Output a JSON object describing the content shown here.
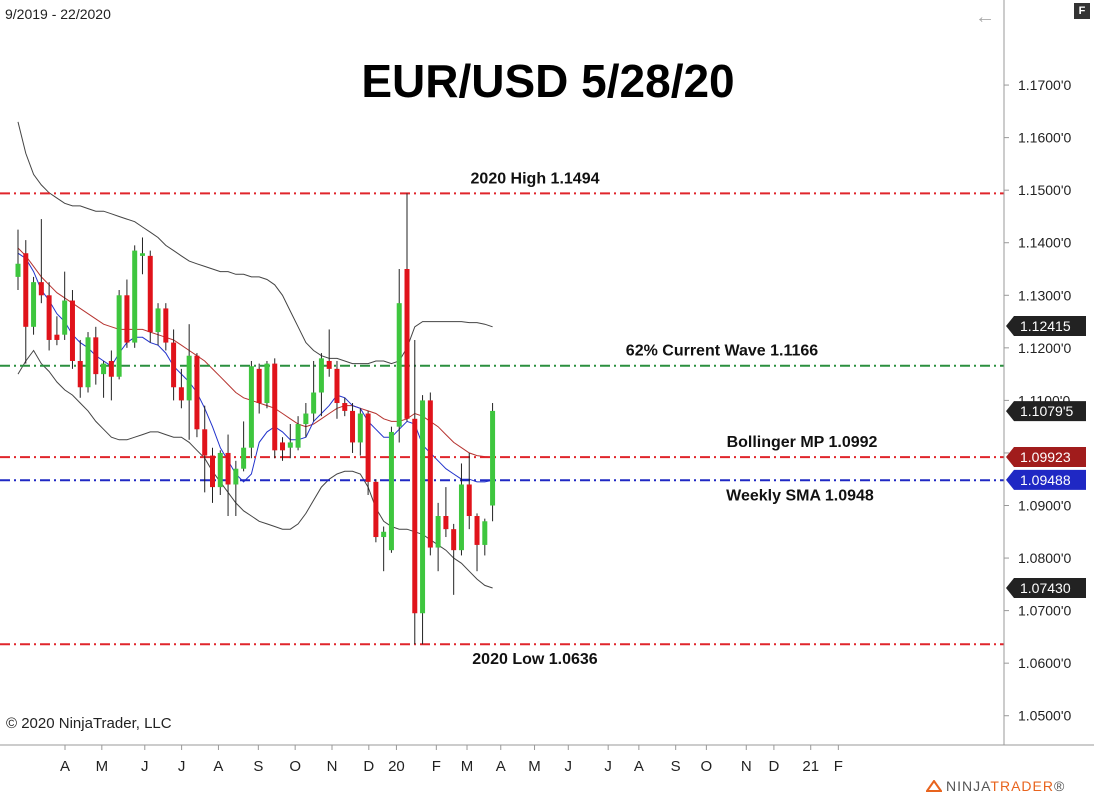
{
  "header": {
    "date_range": "9/2019 - 22/2020",
    "f_label": "F"
  },
  "footer": {
    "copyright": "© 2020 NinjaTrader, LLC",
    "brand_ninja": "NINJA",
    "brand_trader": "TRADER",
    "brand_mark": "®"
  },
  "chart_data": {
    "type": "candlestick",
    "title": "EUR/USD 5/28/20",
    "ylim": [
      1.045,
      1.182
    ],
    "y_ticks": [
      1.05,
      1.06,
      1.07,
      1.08,
      1.09,
      1.1,
      1.11,
      1.12,
      1.13,
      1.14,
      1.15,
      1.16,
      1.17
    ],
    "y_tick_labels": [
      "1.0500'0",
      "1.0600'0",
      "1.0700'0",
      "1.0800'0",
      "1.0900'0",
      "1.1000'0",
      "1.1100'0",
      "1.1200'0",
      "1.1300'0",
      "1.1400'0",
      "1.1500'0",
      "1.1600'0",
      "1.1700'0"
    ],
    "x_labels": [
      "A",
      "M",
      "J",
      "J",
      "A",
      "S",
      "O",
      "N",
      "D",
      "20",
      "F",
      "M",
      "A",
      "M",
      "J",
      "J",
      "A",
      "S",
      "O",
      "N",
      "D",
      "21",
      "F"
    ],
    "x_label_index": [
      1,
      13,
      27,
      39,
      51,
      64,
      76,
      88,
      100,
      109,
      122,
      132,
      143,
      154,
      165,
      178,
      188,
      200,
      210,
      223,
      232,
      244,
      253
    ],
    "candle_spacing_index_scale": 3.97,
    "candles": [
      {
        "o": 1.1335,
        "h": 1.1425,
        "l": 1.131,
        "c": 1.136,
        "color": "green"
      },
      {
        "o": 1.138,
        "h": 1.1405,
        "l": 1.117,
        "c": 1.124,
        "color": "red"
      },
      {
        "o": 1.124,
        "h": 1.1335,
        "l": 1.1225,
        "c": 1.1325,
        "color": "green"
      },
      {
        "o": 1.1325,
        "h": 1.1445,
        "l": 1.1285,
        "c": 1.13,
        "color": "red"
      },
      {
        "o": 1.13,
        "h": 1.1325,
        "l": 1.1195,
        "c": 1.1215,
        "color": "red"
      },
      {
        "o": 1.1215,
        "h": 1.126,
        "l": 1.1205,
        "c": 1.1225,
        "color": "red"
      },
      {
        "o": 1.1225,
        "h": 1.1345,
        "l": 1.1215,
        "c": 1.129,
        "color": "green"
      },
      {
        "o": 1.129,
        "h": 1.131,
        "l": 1.116,
        "c": 1.1175,
        "color": "red"
      },
      {
        "o": 1.1175,
        "h": 1.1215,
        "l": 1.1105,
        "c": 1.1125,
        "color": "red"
      },
      {
        "o": 1.1125,
        "h": 1.123,
        "l": 1.1115,
        "c": 1.122,
        "color": "green"
      },
      {
        "o": 1.122,
        "h": 1.124,
        "l": 1.113,
        "c": 1.115,
        "color": "red"
      },
      {
        "o": 1.115,
        "h": 1.1175,
        "l": 1.1105,
        "c": 1.117,
        "color": "green"
      },
      {
        "o": 1.1175,
        "h": 1.1195,
        "l": 1.11,
        "c": 1.1145,
        "color": "red"
      },
      {
        "o": 1.1145,
        "h": 1.131,
        "l": 1.114,
        "c": 1.13,
        "color": "green"
      },
      {
        "o": 1.13,
        "h": 1.133,
        "l": 1.12,
        "c": 1.121,
        "color": "red"
      },
      {
        "o": 1.121,
        "h": 1.1395,
        "l": 1.12,
        "c": 1.1385,
        "color": "green"
      },
      {
        "o": 1.138,
        "h": 1.141,
        "l": 1.134,
        "c": 1.1375,
        "color": "green"
      },
      {
        "o": 1.1375,
        "h": 1.1385,
        "l": 1.121,
        "c": 1.123,
        "color": "red"
      },
      {
        "o": 1.123,
        "h": 1.1285,
        "l": 1.1205,
        "c": 1.1275,
        "color": "green"
      },
      {
        "o": 1.1275,
        "h": 1.1285,
        "l": 1.1195,
        "c": 1.121,
        "color": "red"
      },
      {
        "o": 1.121,
        "h": 1.1235,
        "l": 1.11,
        "c": 1.1125,
        "color": "red"
      },
      {
        "o": 1.1125,
        "h": 1.116,
        "l": 1.1085,
        "c": 1.11,
        "color": "red"
      },
      {
        "o": 1.11,
        "h": 1.1245,
        "l": 1.1025,
        "c": 1.1185,
        "color": "green"
      },
      {
        "o": 1.1185,
        "h": 1.119,
        "l": 1.103,
        "c": 1.1045,
        "color": "red"
      },
      {
        "o": 1.1045,
        "h": 1.109,
        "l": 1.0925,
        "c": 1.0995,
        "color": "red"
      },
      {
        "o": 1.0995,
        "h": 1.101,
        "l": 1.0905,
        "c": 1.0935,
        "color": "red"
      },
      {
        "o": 1.0935,
        "h": 1.1005,
        "l": 1.092,
        "c": 1.1,
        "color": "green"
      },
      {
        "o": 1.1,
        "h": 1.1035,
        "l": 1.088,
        "c": 1.094,
        "color": "red"
      },
      {
        "o": 1.094,
        "h": 1.0985,
        "l": 1.088,
        "c": 1.097,
        "color": "green"
      },
      {
        "o": 1.097,
        "h": 1.106,
        "l": 1.0965,
        "c": 1.101,
        "color": "green"
      },
      {
        "o": 1.101,
        "h": 1.1175,
        "l": 1.099,
        "c": 1.1165,
        "color": "green"
      },
      {
        "o": 1.116,
        "h": 1.117,
        "l": 1.1075,
        "c": 1.1095,
        "color": "red"
      },
      {
        "o": 1.1095,
        "h": 1.1175,
        "l": 1.1085,
        "c": 1.117,
        "color": "green"
      },
      {
        "o": 1.117,
        "h": 1.118,
        "l": 1.099,
        "c": 1.1005,
        "color": "red"
      },
      {
        "o": 1.1005,
        "h": 1.103,
        "l": 1.0985,
        "c": 1.102,
        "color": "red"
      },
      {
        "o": 1.102,
        "h": 1.1055,
        "l": 1.099,
        "c": 1.101,
        "color": "green"
      },
      {
        "o": 1.101,
        "h": 1.107,
        "l": 1.1005,
        "c": 1.1055,
        "color": "green"
      },
      {
        "o": 1.1055,
        "h": 1.1095,
        "l": 1.103,
        "c": 1.1075,
        "color": "green"
      },
      {
        "o": 1.1075,
        "h": 1.1175,
        "l": 1.106,
        "c": 1.1115,
        "color": "green"
      },
      {
        "o": 1.1115,
        "h": 1.119,
        "l": 1.107,
        "c": 1.118,
        "color": "green"
      },
      {
        "o": 1.1175,
        "h": 1.1235,
        "l": 1.1145,
        "c": 1.116,
        "color": "red"
      },
      {
        "o": 1.116,
        "h": 1.1175,
        "l": 1.1065,
        "c": 1.1095,
        "color": "red"
      },
      {
        "o": 1.1095,
        "h": 1.1105,
        "l": 1.107,
        "c": 1.108,
        "color": "red"
      },
      {
        "o": 1.108,
        "h": 1.1095,
        "l": 1.1,
        "c": 1.102,
        "color": "red"
      },
      {
        "o": 1.102,
        "h": 1.1085,
        "l": 1.0995,
        "c": 1.1075,
        "color": "green"
      },
      {
        "o": 1.1075,
        "h": 1.108,
        "l": 1.092,
        "c": 1.0945,
        "color": "red"
      },
      {
        "o": 1.0945,
        "h": 1.095,
        "l": 1.083,
        "c": 1.084,
        "color": "red"
      },
      {
        "o": 1.084,
        "h": 1.086,
        "l": 1.0775,
        "c": 1.085,
        "color": "green"
      },
      {
        "o": 1.0815,
        "h": 1.105,
        "l": 1.081,
        "c": 1.104,
        "color": "green"
      },
      {
        "o": 1.105,
        "h": 1.135,
        "l": 1.102,
        "c": 1.1285,
        "color": "green"
      },
      {
        "o": 1.135,
        "h": 1.1494,
        "l": 1.106,
        "c": 1.1065,
        "color": "red"
      },
      {
        "o": 1.1065,
        "h": 1.1215,
        "l": 1.0636,
        "c": 1.0695,
        "color": "red"
      },
      {
        "o": 1.0695,
        "h": 1.111,
        "l": 1.0636,
        "c": 1.11,
        "color": "green"
      },
      {
        "o": 1.11,
        "h": 1.1115,
        "l": 1.0805,
        "c": 1.082,
        "color": "red"
      },
      {
        "o": 1.082,
        "h": 1.0905,
        "l": 1.0775,
        "c": 1.088,
        "color": "green"
      },
      {
        "o": 1.088,
        "h": 1.0935,
        "l": 1.084,
        "c": 1.0855,
        "color": "red"
      },
      {
        "o": 1.0855,
        "h": 1.0865,
        "l": 1.073,
        "c": 1.0815,
        "color": "red"
      },
      {
        "o": 1.0815,
        "h": 1.098,
        "l": 1.0805,
        "c": 1.094,
        "color": "green"
      },
      {
        "o": 1.094,
        "h": 1.1,
        "l": 1.0855,
        "c": 1.088,
        "color": "red"
      },
      {
        "o": 1.088,
        "h": 1.0885,
        "l": 1.0775,
        "c": 1.0825,
        "color": "red"
      },
      {
        "o": 1.0825,
        "h": 1.0875,
        "l": 1.0805,
        "c": 1.087,
        "color": "green"
      },
      {
        "o": 1.09,
        "h": 1.1095,
        "l": 1.087,
        "c": 1.108,
        "color": "green"
      }
    ],
    "bollinger_upper": [
      1.163,
      1.157,
      1.153,
      1.151,
      1.1495,
      1.1485,
      1.1475,
      1.147,
      1.147,
      1.1465,
      1.146,
      1.146,
      1.1455,
      1.145,
      1.1445,
      1.144,
      1.143,
      1.142,
      1.141,
      1.1395,
      1.1385,
      1.1375,
      1.1365,
      1.136,
      1.1355,
      1.135,
      1.1345,
      1.1345,
      1.134,
      1.134,
      1.1335,
      1.1335,
      1.133,
      1.132,
      1.13,
      1.127,
      1.124,
      1.121,
      1.1195,
      1.1185,
      1.118,
      1.118,
      1.1175,
      1.117,
      1.117,
      1.117,
      1.1175,
      1.1175,
      1.117,
      1.1175,
      1.12,
      1.124,
      1.125,
      1.125,
      1.125,
      1.125,
      1.125,
      1.125,
      1.1248,
      1.1248,
      1.1245,
      1.124
    ],
    "bollinger_mid": [
      1.139,
      1.1375,
      1.1355,
      1.1335,
      1.132,
      1.1305,
      1.1295,
      1.1285,
      1.1275,
      1.1265,
      1.1255,
      1.1245,
      1.124,
      1.1235,
      1.1235,
      1.1235,
      1.1235,
      1.123,
      1.1225,
      1.122,
      1.1215,
      1.1205,
      1.1195,
      1.1185,
      1.1175,
      1.116,
      1.1145,
      1.113,
      1.1115,
      1.1105,
      1.11,
      1.1095,
      1.109,
      1.1085,
      1.1075,
      1.1065,
      1.1055,
      1.105,
      1.1055,
      1.1065,
      1.1075,
      1.1085,
      1.109,
      1.109,
      1.1085,
      1.108,
      1.1075,
      1.1065,
      1.106,
      1.106,
      1.1065,
      1.1075,
      1.107,
      1.106,
      1.105,
      1.1035,
      1.102,
      1.101,
      1.1,
      1.0995,
      1.0993,
      1.0992
    ],
    "bollinger_lower": [
      1.115,
      1.1175,
      1.1195,
      1.117,
      1.1155,
      1.1135,
      1.112,
      1.111,
      1.1095,
      1.108,
      1.106,
      1.1045,
      1.103,
      1.1025,
      1.1025,
      1.103,
      1.1035,
      1.104,
      1.104,
      1.1035,
      1.103,
      1.103,
      1.102,
      1.1005,
      1.099,
      1.0965,
      1.0945,
      1.0925,
      1.0905,
      1.089,
      1.088,
      1.087,
      1.0865,
      1.086,
      1.0855,
      1.0855,
      1.0865,
      1.0885,
      1.091,
      1.0935,
      1.095,
      1.096,
      1.0965,
      1.0965,
      1.096,
      1.0935,
      1.0895,
      1.087,
      1.086,
      1.0855,
      1.0855,
      1.085,
      1.0845,
      1.0835,
      1.0825,
      1.0815,
      1.08,
      1.079,
      1.0775,
      1.076,
      1.0748,
      1.0743
    ],
    "weekly_sma": [
      1.138,
      1.137,
      1.1345,
      1.131,
      1.129,
      1.1265,
      1.125,
      1.1225,
      1.121,
      1.12,
      1.1185,
      1.1175,
      1.1165,
      1.119,
      1.121,
      1.122,
      1.122,
      1.121,
      1.1205,
      1.119,
      1.1165,
      1.115,
      1.1135,
      1.1115,
      1.1085,
      1.105,
      1.101,
      1.0985,
      1.096,
      1.0945,
      1.096,
      1.102,
      1.104,
      1.105,
      1.104,
      1.1025,
      1.1025,
      1.103,
      1.106,
      1.1075,
      1.109,
      1.111,
      1.1105,
      1.109,
      1.1085,
      1.106,
      1.1045,
      1.103,
      1.103,
      1.1045,
      1.106,
      1.1055,
      1.1015,
      1.1,
      1.0985,
      1.097,
      1.096,
      1.095,
      1.095,
      1.0945,
      1.0945,
      1.0948
    ],
    "levels": [
      {
        "label": "2020 High 1.1494",
        "value": 1.1494,
        "color": "#e0252b",
        "label_pos": "above"
      },
      {
        "label": "62% Current Wave 1.1166",
        "value": 1.1166,
        "color": "#2a8f3f",
        "label_pos": "above"
      },
      {
        "label": "Bollinger MP 1.0992",
        "value": 1.0992,
        "color": "#e0252b",
        "label_pos": "above"
      },
      {
        "label": "Weekly SMA 1.0948",
        "value": 1.0948,
        "color": "#1f28c4",
        "label_pos": "below"
      },
      {
        "label": "2020 Low 1.0636",
        "value": 1.0636,
        "color": "#e0252b",
        "label_pos": "below"
      }
    ],
    "price_tags": [
      {
        "label": "1.12415",
        "value": 1.12415,
        "color": "#222222"
      },
      {
        "label": "1.1079'5",
        "value": 1.10795,
        "color": "#222222"
      },
      {
        "label": "1.09923",
        "value": 1.09923,
        "color": "#a11c1c"
      },
      {
        "label": "1.09488",
        "value": 1.09488,
        "color": "#1f28c4"
      },
      {
        "label": "1.07430",
        "value": 1.0743,
        "color": "#222222"
      }
    ]
  }
}
